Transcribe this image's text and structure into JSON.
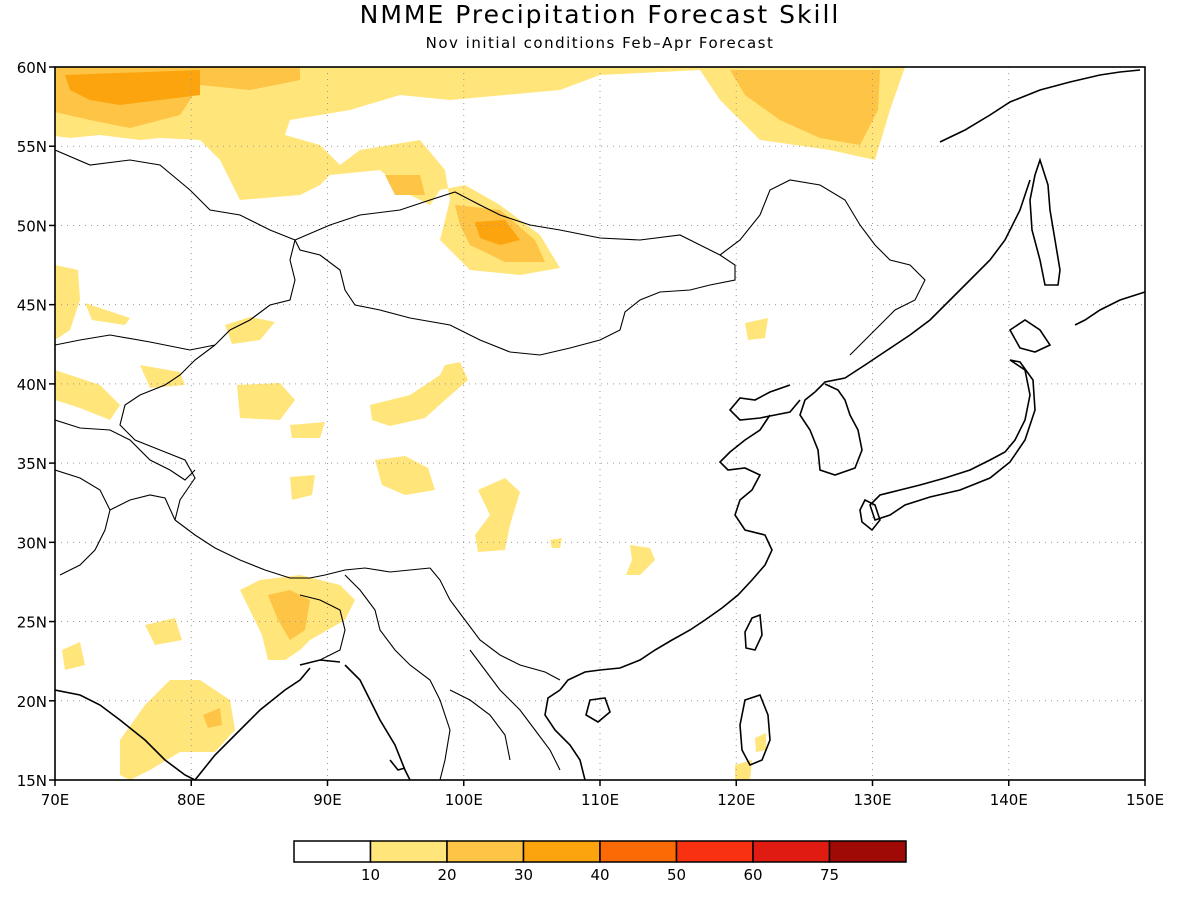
{
  "title": "NMME Precipitation Forecast Skill",
  "subtitle": "Nov initial conditions  Feb–Apr Forecast",
  "x_ticks": [
    "70E",
    "80E",
    "90E",
    "100E",
    "110E",
    "120E",
    "130E",
    "140E",
    "150E"
  ],
  "y_ticks": [
    "15N",
    "20N",
    "25N",
    "30N",
    "35N",
    "40N",
    "45N",
    "50N",
    "55N",
    "60N"
  ],
  "colorbar": {
    "labels": [
      "10",
      "20",
      "30",
      "40",
      "50",
      "60",
      "75"
    ],
    "colors": [
      "#ffffff",
      "#ffe57a",
      "#fdc445",
      "#fca40d",
      "#fc6a05",
      "#f83210",
      "#e01c12",
      "#a00a06"
    ]
  },
  "map_data": {
    "variable": "Precipitation forecast skill",
    "lon_range": [
      70,
      150
    ],
    "lat_range": [
      15,
      60
    ],
    "grid": "dotted"
  }
}
